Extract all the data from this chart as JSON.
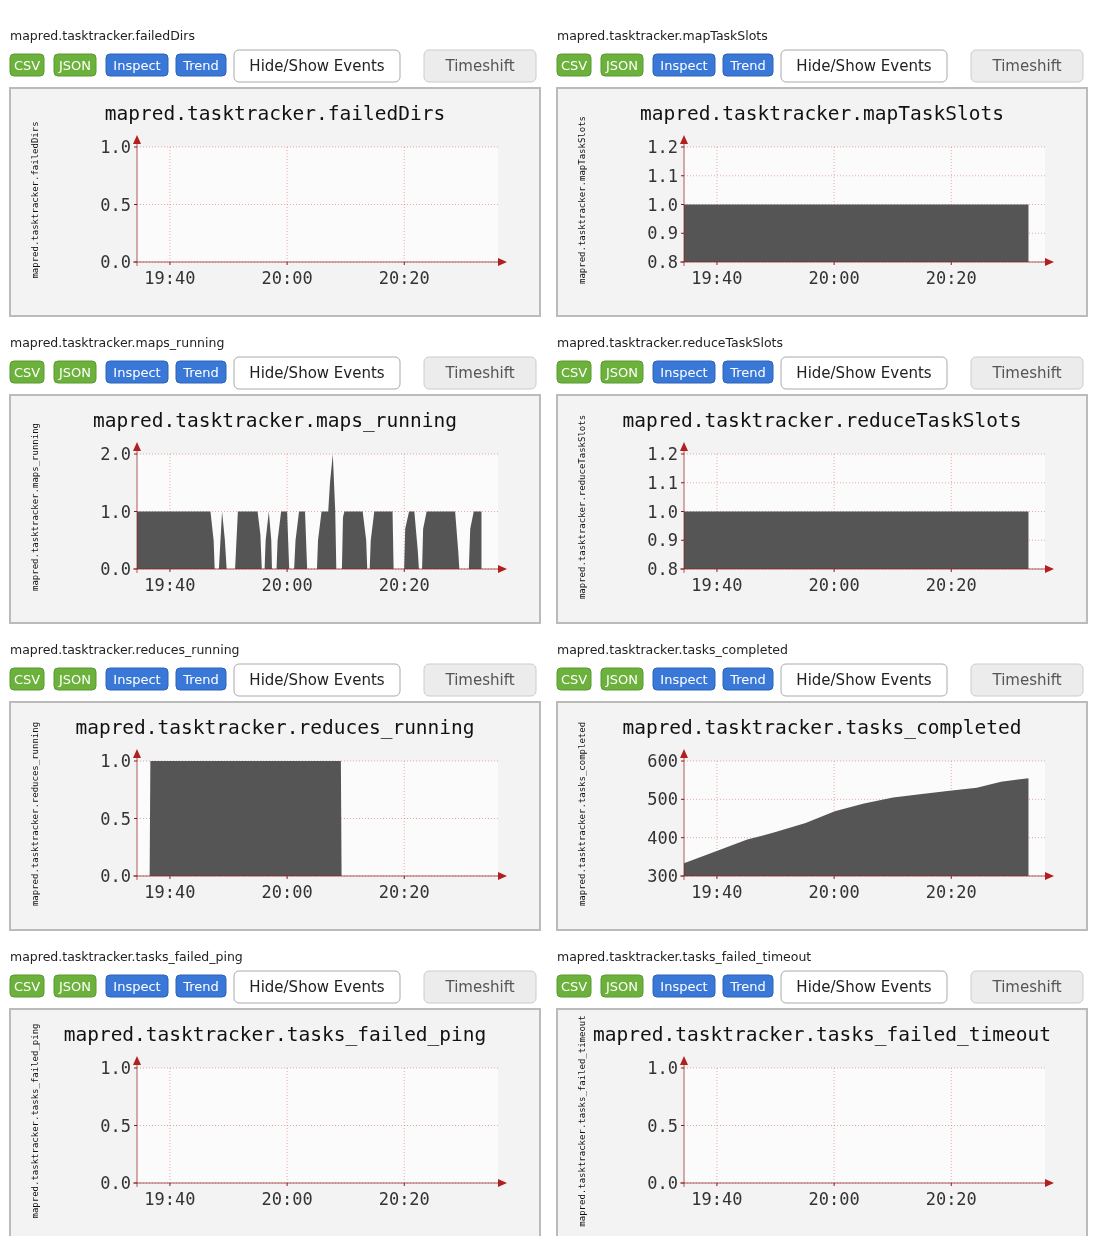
{
  "chart_data": [
    {
      "type": "area",
      "title": "mapred.tasktracker.failedDirs",
      "subtitle": "mapred.tasktracker.failedDirs",
      "ylabel": "mapred.tasktracker.failedDirs",
      "annotations": [
        "CSV",
        "JSON",
        "Inspect",
        "Trend",
        "Hide/Show Events",
        "Timeshift"
      ],
      "xlim": [
        19.573,
        20.6
      ],
      "xticks": [
        {
          "value": 19.6667,
          "label": "19:40"
        },
        {
          "value": 20,
          "label": "20:00"
        },
        {
          "value": 20.3333,
          "label": "20:20"
        }
      ],
      "ylim": [
        0,
        1
      ],
      "yticks": [
        {
          "value": 0,
          "label": "0.0"
        },
        {
          "value": 0.5,
          "label": "0.5"
        },
        {
          "value": 1,
          "label": "1.0"
        }
      ],
      "grid": true
    },
    {
      "type": "area",
      "title": "mapred.tasktracker.mapTaskSlots",
      "subtitle": "mapred.tasktracker.mapTaskSlots",
      "ylabel": "mapred.tasktracker.mapTaskSlots",
      "annotations": [
        "CSV",
        "JSON",
        "Inspect",
        "Trend",
        "Hide/Show Events",
        "Timeshift"
      ],
      "x": [
        19.573,
        20.553
      ],
      "values": [
        1,
        1
      ],
      "color": "#555555",
      "xlim": [
        19.573,
        20.6
      ],
      "xticks": [
        {
          "value": 19.6667,
          "label": "19:40"
        },
        {
          "value": 20,
          "label": "20:00"
        },
        {
          "value": 20.3333,
          "label": "20:20"
        }
      ],
      "ylim": [
        0.8,
        1.2
      ],
      "yticks": [
        0.8,
        0.9,
        {
          "value": 1,
          "label": "1.0"
        },
        1.1,
        1.2
      ],
      "grid": true
    },
    {
      "type": "area",
      "title": "mapred.tasktracker.maps_running",
      "subtitle": "mapred.tasktracker.maps_running",
      "ylabel": "mapred.tasktracker.maps_running",
      "annotations": [
        "CSV",
        "JSON",
        "Inspect",
        "Trend",
        "Hide/Show Events",
        "Timeshift"
      ],
      "x": [
        19.573,
        19.782,
        19.791,
        19.794,
        19.806,
        19.815,
        19.823,
        19.828,
        19.852,
        19.86,
        19.916,
        19.924,
        19.928,
        19.936,
        19.939,
        19.948,
        19.955,
        19.957,
        19.97,
        19.973,
        19.983,
        20,
        20.006,
        20.02,
        20.024,
        20.034,
        20.051,
        20.057,
        20.085,
        20.088,
        20.098,
        20.117,
        20.122,
        20.13,
        20.137,
        20.14,
        20.156,
        20.159,
        20.163,
        20.215,
        20.225,
        20.228,
        20.235,
        20.238,
        20.248,
        20.3,
        20.303,
        20.333,
        20.336,
        20.347,
        20.362,
        20.372,
        20.375,
        20.384,
        20.387,
        20.397,
        20.478,
        20.487,
        20.49,
        20.517,
        20.521,
        20.531,
        20.553
      ],
      "values": [
        1,
        1,
        0.5,
        0,
        0,
        1,
        0.5,
        0,
        0,
        1,
        1,
        0.6,
        0,
        0,
        0.5,
        1,
        0.5,
        0,
        0,
        0.5,
        1,
        1,
        0,
        0,
        0.5,
        1,
        1,
        0,
        0,
        0.5,
        1,
        1,
        1.5,
        2,
        1,
        0,
        0,
        0.9,
        1,
        1,
        0.5,
        0,
        0,
        0.5,
        1,
        1,
        0,
        0,
        0.7,
        1,
        1,
        0.3,
        0,
        0,
        0.7,
        1,
        1,
        0.3,
        0,
        0,
        0.7,
        1,
        1
      ],
      "color": "#555555",
      "xlim": [
        19.573,
        20.6
      ],
      "xticks": [
        {
          "value": 19.6667,
          "label": "19:40"
        },
        {
          "value": 20,
          "label": "20:00"
        },
        {
          "value": 20.3333,
          "label": "20:20"
        }
      ],
      "ylim": [
        0,
        2
      ],
      "yticks": [
        {
          "value": 0,
          "label": "0.0"
        },
        {
          "value": 1,
          "label": "1.0"
        },
        {
          "value": 2,
          "label": "2.0"
        }
      ],
      "grid": true
    },
    {
      "type": "area",
      "title": "mapred.tasktracker.reduceTaskSlots",
      "subtitle": "mapred.tasktracker.reduceTaskSlots",
      "ylabel": "mapred.tasktracker.reduceTaskSlots",
      "annotations": [
        "CSV",
        "JSON",
        "Inspect",
        "Trend",
        "Hide/Show Events",
        "Timeshift"
      ],
      "x": [
        19.573,
        20.553
      ],
      "values": [
        1,
        1
      ],
      "color": "#555555",
      "xlim": [
        19.573,
        20.6
      ],
      "xticks": [
        {
          "value": 19.6667,
          "label": "19:40"
        },
        {
          "value": 20,
          "label": "20:00"
        },
        {
          "value": 20.3333,
          "label": "20:20"
        }
      ],
      "ylim": [
        0.8,
        1.2
      ],
      "yticks": [
        0.8,
        0.9,
        {
          "value": 1,
          "label": "1.0"
        },
        1.1,
        1.2
      ],
      "grid": true
    },
    {
      "type": "area",
      "title": "mapred.tasktracker.reduces_running",
      "subtitle": "mapred.tasktracker.reduces_running",
      "ylabel": "mapred.tasktracker.reduces_running",
      "annotations": [
        "CSV",
        "JSON",
        "Inspect",
        "Trend",
        "Hide/Show Events",
        "Timeshift"
      ],
      "x": [
        19.573,
        19.609,
        19.611,
        20.153,
        20.155,
        20.553
      ],
      "values": [
        0,
        0,
        1,
        1,
        0,
        0
      ],
      "color": "#555555",
      "xlim": [
        19.573,
        20.6
      ],
      "xticks": [
        {
          "value": 19.6667,
          "label": "19:40"
        },
        {
          "value": 20,
          "label": "20:00"
        },
        {
          "value": 20.3333,
          "label": "20:20"
        }
      ],
      "ylim": [
        0,
        1
      ],
      "yticks": [
        {
          "value": 0,
          "label": "0.0"
        },
        {
          "value": 0.5,
          "label": "0.5"
        },
        {
          "value": 1,
          "label": "1.0"
        }
      ],
      "grid": true
    },
    {
      "type": "area",
      "title": "mapred.tasktracker.tasks_completed",
      "subtitle": "mapred.tasktracker.tasks_completed",
      "ylabel": "mapred.tasktracker.tasks_completed",
      "annotations": [
        "CSV",
        "JSON",
        "Inspect",
        "Trend",
        "Hide/Show Events",
        "Timeshift"
      ],
      "x": [
        19.573,
        19.666,
        19.753,
        19.831,
        19.919,
        20.002,
        20.085,
        20.168,
        20.25,
        20.335,
        20.406,
        20.475,
        20.553
      ],
      "values": [
        333,
        365,
        395,
        414,
        438,
        469,
        489,
        505,
        514,
        523,
        530,
        546,
        555
      ],
      "color": "#555555",
      "xlim": [
        19.573,
        20.6
      ],
      "xticks": [
        {
          "value": 19.6667,
          "label": "19:40"
        },
        {
          "value": 20,
          "label": "20:00"
        },
        {
          "value": 20.3333,
          "label": "20:20"
        }
      ],
      "ylim": [
        300,
        600
      ],
      "yticks": [
        300,
        400,
        500,
        600
      ],
      "grid": true
    },
    {
      "type": "area",
      "title": "mapred.tasktracker.tasks_failed_ping",
      "subtitle": "mapred.tasktracker.tasks_failed_ping",
      "ylabel": "mapred.tasktracker.tasks_failed_ping",
      "annotations": [
        "CSV",
        "JSON",
        "Inspect",
        "Trend",
        "Hide/Show Events",
        "Timeshift"
      ],
      "xlim": [
        19.573,
        20.6
      ],
      "xticks": [
        {
          "value": 19.6667,
          "label": "19:40"
        },
        {
          "value": 20,
          "label": "20:00"
        },
        {
          "value": 20.3333,
          "label": "20:20"
        }
      ],
      "ylim": [
        0,
        1
      ],
      "yticks": [
        {
          "value": 0,
          "label": "0.0"
        },
        {
          "value": 0.5,
          "label": "0.5"
        },
        {
          "value": 1,
          "label": "1.0"
        }
      ],
      "grid": true
    },
    {
      "type": "area",
      "title": "mapred.tasktracker.tasks_failed_timeout",
      "subtitle": "mapred.tasktracker.tasks_failed_timeout",
      "ylabel": "mapred.tasktracker.tasks_failed_timeout",
      "annotations": [
        "CSV",
        "JSON",
        "Inspect",
        "Trend",
        "Hide/Show Events",
        "Timeshift"
      ],
      "xlim": [
        19.573,
        20.6
      ],
      "xticks": [
        {
          "value": 19.6667,
          "label": "19:40"
        },
        {
          "value": 20,
          "label": "20:00"
        },
        {
          "value": 20.3333,
          "label": "20:20"
        }
      ],
      "ylim": [
        0,
        1
      ],
      "yticks": [
        {
          "value": 0,
          "label": "0.0"
        },
        {
          "value": 0.5,
          "label": "0.5"
        },
        {
          "value": 1,
          "label": "1.0"
        }
      ],
      "grid": true
    }
  ]
}
